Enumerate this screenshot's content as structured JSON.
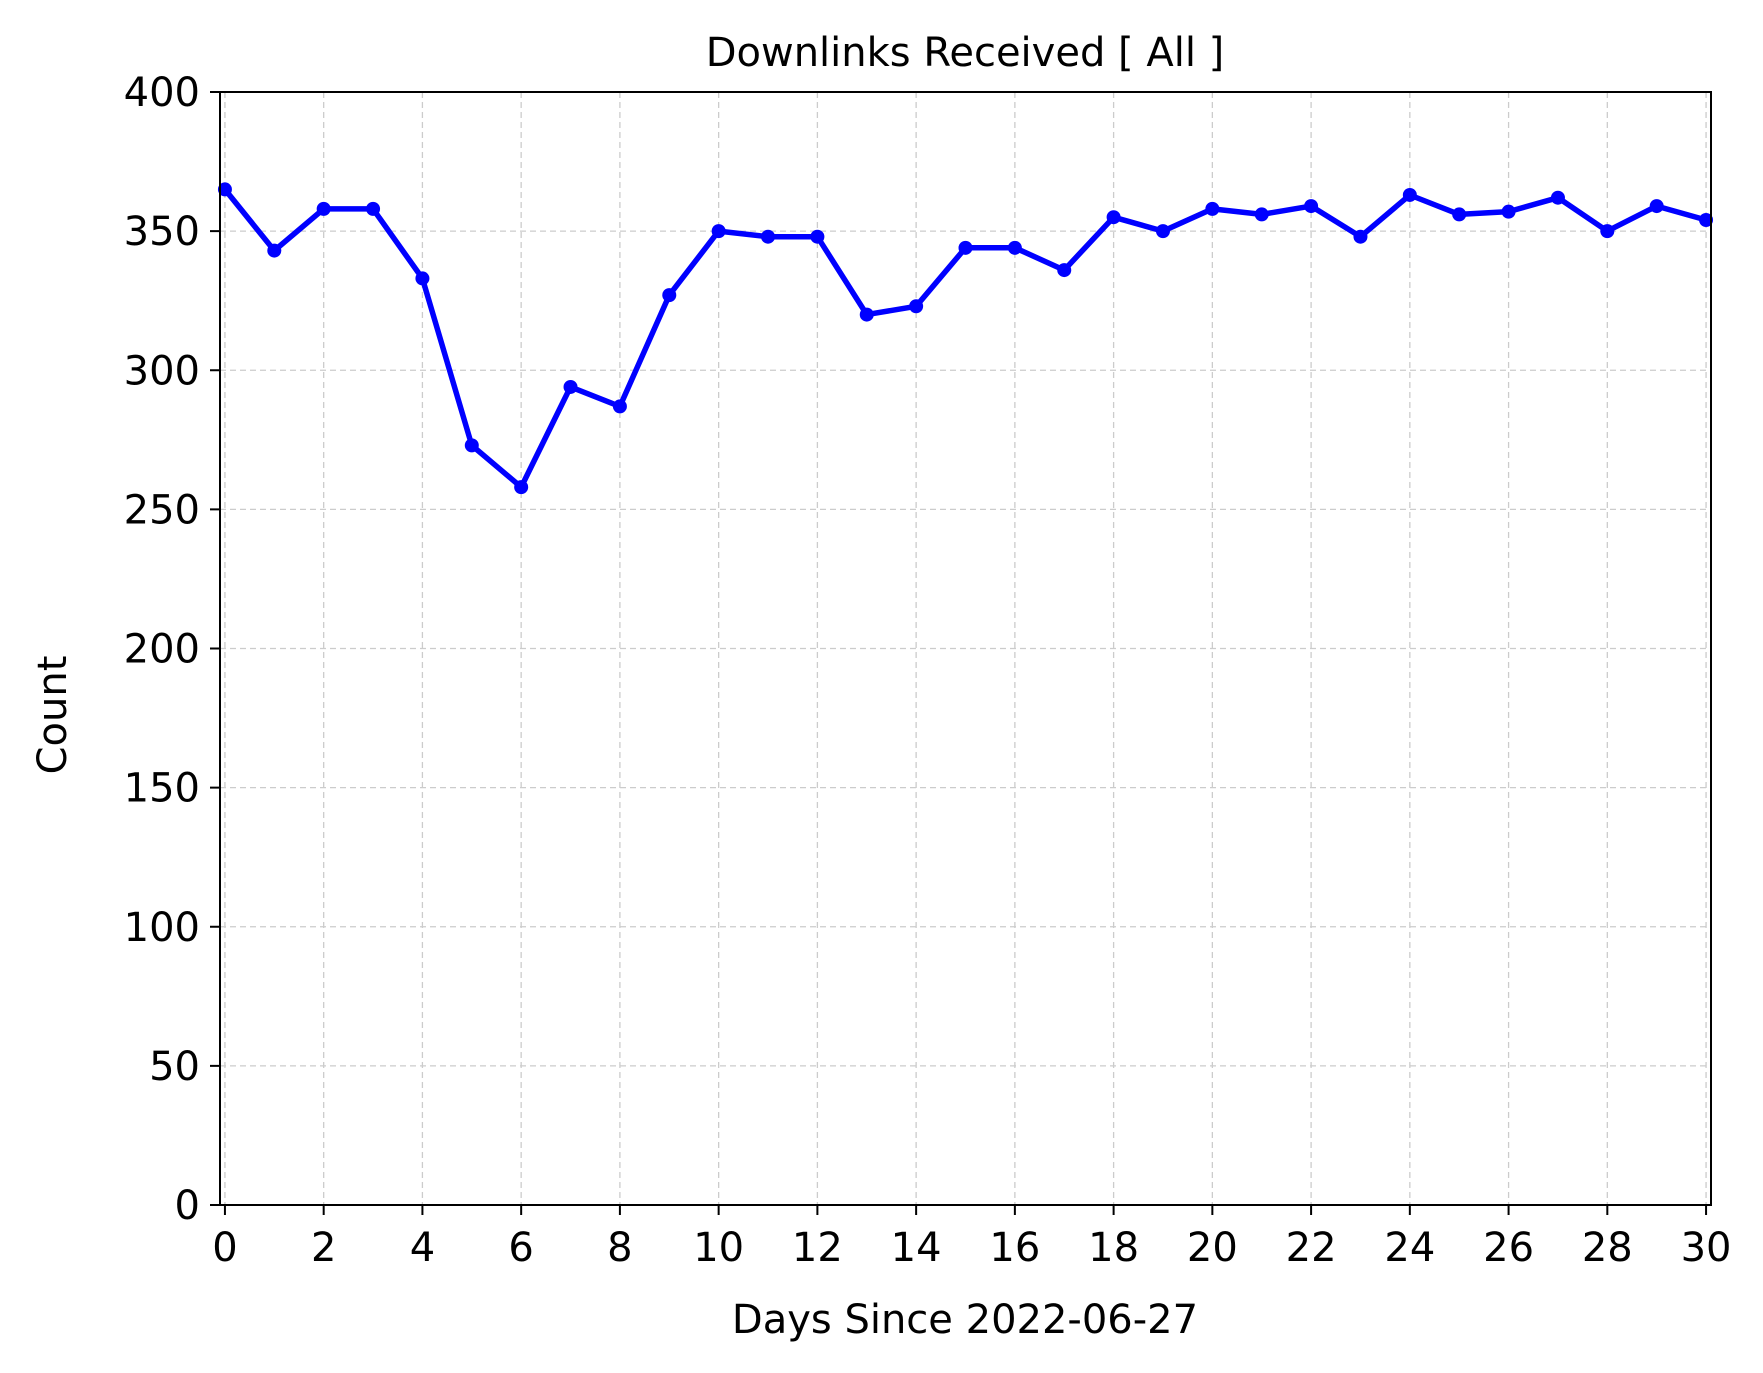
{
  "chart_data": {
    "type": "line",
    "title": "Downlinks Received [ All ]",
    "xlabel": "Days Since 2022-06-27",
    "ylabel": "Count",
    "xlim": [
      -0.1,
      30.1
    ],
    "ylim": [
      0,
      400
    ],
    "xticks": [
      0,
      2,
      4,
      6,
      8,
      10,
      12,
      14,
      16,
      18,
      20,
      22,
      24,
      26,
      28,
      30
    ],
    "yticks": [
      0,
      50,
      100,
      150,
      200,
      250,
      300,
      350,
      400
    ],
    "grid": true,
    "colors": {
      "line": "#0000ff"
    },
    "series": [
      {
        "x": [
          0,
          1,
          2,
          3,
          4,
          5,
          6,
          7,
          8,
          9,
          10,
          11,
          12,
          13,
          14,
          15,
          16,
          17,
          18,
          19,
          20,
          21,
          22,
          23,
          24,
          25,
          26,
          27,
          28,
          29,
          30
        ],
        "y": [
          365,
          343,
          358,
          358,
          333,
          273,
          258,
          294,
          287,
          327,
          350,
          348,
          348,
          320,
          323,
          344,
          344,
          336,
          355,
          350,
          358,
          356,
          359,
          348,
          363,
          356,
          357,
          362,
          350,
          359,
          354
        ]
      }
    ]
  }
}
